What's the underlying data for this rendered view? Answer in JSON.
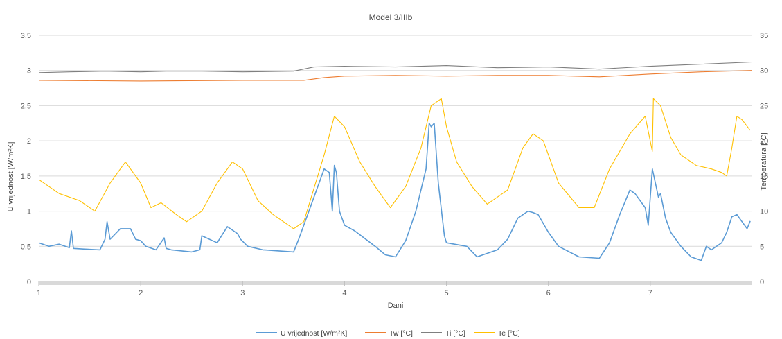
{
  "chart_data": {
    "type": "line",
    "title": "Model 3/IIIb",
    "xlabel": "Dani",
    "ylabel_left": "U vrijednost [W/m²K]",
    "ylabel_right": "Temperatura [°C]",
    "xlim": [
      1,
      8
    ],
    "ylim_left": [
      0,
      3.5
    ],
    "ylim_right": [
      0,
      35
    ],
    "x_ticks": [
      "1",
      "2",
      "3",
      "4",
      "5",
      "6",
      "7"
    ],
    "y_ticks_left": [
      "0",
      "0.5",
      "1",
      "1.5",
      "2",
      "2.5",
      "3",
      "3.5"
    ],
    "y_ticks_right": [
      "0",
      "5",
      "10",
      "15",
      "20",
      "25",
      "30",
      "35"
    ],
    "grid": "horizontal",
    "legend_position": "bottom",
    "series": [
      {
        "name": "U vrijednost [W/m²K]",
        "axis": "left",
        "color": "#5b9bd5",
        "x": [
          1.0,
          1.1,
          1.2,
          1.3,
          1.32,
          1.34,
          1.45,
          1.6,
          1.65,
          1.67,
          1.7,
          1.8,
          1.9,
          1.95,
          2.0,
          2.05,
          2.15,
          2.23,
          2.25,
          2.3,
          2.5,
          2.58,
          2.6,
          2.75,
          2.85,
          2.95,
          2.98,
          3.05,
          3.2,
          3.5,
          3.55,
          3.6,
          3.7,
          3.8,
          3.85,
          3.88,
          3.9,
          3.92,
          3.95,
          4.0,
          4.1,
          4.3,
          4.4,
          4.5,
          4.6,
          4.7,
          4.8,
          4.83,
          4.85,
          4.88,
          4.92,
          4.98,
          5.0,
          5.2,
          5.3,
          5.5,
          5.6,
          5.7,
          5.8,
          5.85,
          5.9,
          6.0,
          6.1,
          6.3,
          6.5,
          6.6,
          6.7,
          6.8,
          6.85,
          6.95,
          6.98,
          7.02,
          7.05,
          7.08,
          7.1,
          7.15,
          7.2,
          7.3,
          7.4,
          7.5,
          7.55,
          7.6,
          7.7,
          7.75,
          7.8,
          7.85,
          7.9,
          7.95,
          7.98
        ],
        "y": [
          0.55,
          0.5,
          0.53,
          0.48,
          0.72,
          0.47,
          0.46,
          0.45,
          0.6,
          0.85,
          0.6,
          0.75,
          0.75,
          0.6,
          0.58,
          0.5,
          0.45,
          0.62,
          0.47,
          0.45,
          0.42,
          0.45,
          0.65,
          0.55,
          0.78,
          0.68,
          0.6,
          0.5,
          0.45,
          0.42,
          0.6,
          0.8,
          1.2,
          1.6,
          1.55,
          1.0,
          1.65,
          1.55,
          1.0,
          0.8,
          0.72,
          0.5,
          0.38,
          0.35,
          0.58,
          1.0,
          1.6,
          2.25,
          2.2,
          2.25,
          1.4,
          0.65,
          0.55,
          0.5,
          0.35,
          0.45,
          0.6,
          0.9,
          1.0,
          0.98,
          0.95,
          0.7,
          0.5,
          0.35,
          0.33,
          0.55,
          0.95,
          1.3,
          1.25,
          1.05,
          0.8,
          1.6,
          1.4,
          1.2,
          1.25,
          0.9,
          0.7,
          0.5,
          0.35,
          0.3,
          0.5,
          0.45,
          0.55,
          0.7,
          0.92,
          0.95,
          0.85,
          0.75,
          0.86
        ]
      },
      {
        "name": "Tw [°C]",
        "axis": "right",
        "color": "#ed7d31",
        "x": [
          1.0,
          2.0,
          3.0,
          3.6,
          3.8,
          4.0,
          4.5,
          5.0,
          5.5,
          6.0,
          6.5,
          7.0,
          7.5,
          8.0
        ],
        "y": [
          28.6,
          28.5,
          28.6,
          28.6,
          29.0,
          29.2,
          29.3,
          29.2,
          29.3,
          29.3,
          29.1,
          29.5,
          29.8,
          30.0
        ]
      },
      {
        "name": "Ti [°C]",
        "axis": "right",
        "color": "#7f7f7f",
        "x": [
          1.0,
          1.3,
          1.65,
          2.0,
          2.25,
          2.6,
          3.0,
          3.5,
          3.7,
          4.0,
          4.5,
          5.0,
          5.5,
          6.0,
          6.5,
          7.0,
          7.5,
          8.0
        ],
        "y": [
          29.7,
          29.8,
          29.9,
          29.8,
          29.9,
          29.9,
          29.8,
          29.9,
          30.5,
          30.6,
          30.5,
          30.7,
          30.4,
          30.5,
          30.2,
          30.6,
          30.9,
          31.2
        ]
      },
      {
        "name": "Te [°C]",
        "axis": "right",
        "color": "#ffc000",
        "x": [
          1.0,
          1.2,
          1.4,
          1.55,
          1.7,
          1.85,
          2.0,
          2.1,
          2.2,
          2.35,
          2.45,
          2.6,
          2.75,
          2.9,
          3.0,
          3.15,
          3.3,
          3.5,
          3.6,
          3.8,
          3.9,
          4.0,
          4.15,
          4.3,
          4.45,
          4.6,
          4.75,
          4.85,
          4.95,
          5.0,
          5.1,
          5.25,
          5.4,
          5.6,
          5.75,
          5.85,
          5.95,
          6.1,
          6.3,
          6.45,
          6.6,
          6.8,
          6.95,
          7.02,
          7.03,
          7.1,
          7.2,
          7.3,
          7.45,
          7.6,
          7.7,
          7.75,
          7.8,
          7.85,
          7.9,
          7.98
        ],
        "y": [
          14.5,
          12.5,
          11.5,
          10.0,
          14.0,
          17.0,
          14.0,
          10.5,
          11.2,
          9.5,
          8.5,
          10.0,
          14.0,
          17.0,
          16.0,
          11.5,
          9.5,
          7.5,
          8.5,
          18.0,
          23.5,
          22.0,
          17.0,
          13.5,
          10.5,
          13.5,
          19.0,
          25.0,
          26.0,
          22.0,
          17.0,
          13.5,
          11.0,
          13.0,
          19.0,
          21.0,
          20.0,
          14.0,
          10.5,
          10.5,
          16.0,
          21.0,
          23.5,
          18.5,
          26.0,
          25.0,
          20.5,
          18.0,
          16.5,
          16.0,
          15.5,
          15.0,
          19.0,
          23.5,
          23.0,
          21.5
        ]
      }
    ]
  }
}
